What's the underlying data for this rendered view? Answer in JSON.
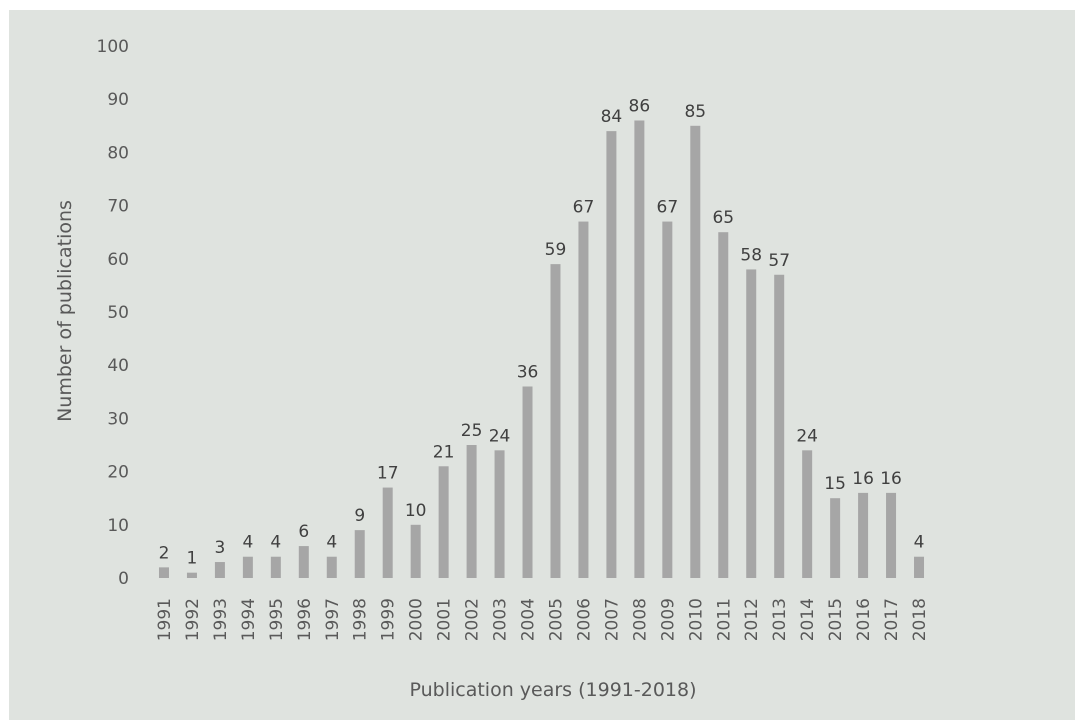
{
  "chart_data": {
    "type": "bar",
    "title": "",
    "xlabel": "Publication years (1991-2018)",
    "ylabel": "Number of publications",
    "ylim": [
      0,
      100
    ],
    "yticks": [
      0,
      10,
      20,
      30,
      40,
      50,
      60,
      70,
      80,
      90,
      100
    ],
    "grid": false,
    "legend": "none",
    "bar_color": "#a6a6a6",
    "background_color": "#dfe3df",
    "categories": [
      "1991",
      "1992",
      "1993",
      "1994",
      "1995",
      "1996",
      "1997",
      "1998",
      "1999",
      "2000",
      "2001",
      "2002",
      "2003",
      "2004",
      "2005",
      "2006",
      "2007",
      "2008",
      "2009",
      "2010",
      "2011",
      "2012",
      "2013",
      "2014",
      "2015",
      "2016",
      "2017",
      "2018"
    ],
    "values": [
      2,
      1,
      3,
      4,
      4,
      6,
      4,
      9,
      17,
      10,
      21,
      25,
      24,
      36,
      59,
      67,
      84,
      86,
      67,
      85,
      65,
      58,
      57,
      24,
      15,
      16,
      16,
      4
    ],
    "value_labels": [
      "2",
      "1",
      "3",
      "4",
      "4",
      "6",
      "4",
      "9",
      "17",
      "10",
      "21",
      "25",
      "24",
      "36",
      "59",
      "67",
      "84",
      "86",
      "67",
      "85",
      "65",
      "58",
      "57",
      "24",
      "15",
      "16",
      "16",
      "4"
    ]
  }
}
